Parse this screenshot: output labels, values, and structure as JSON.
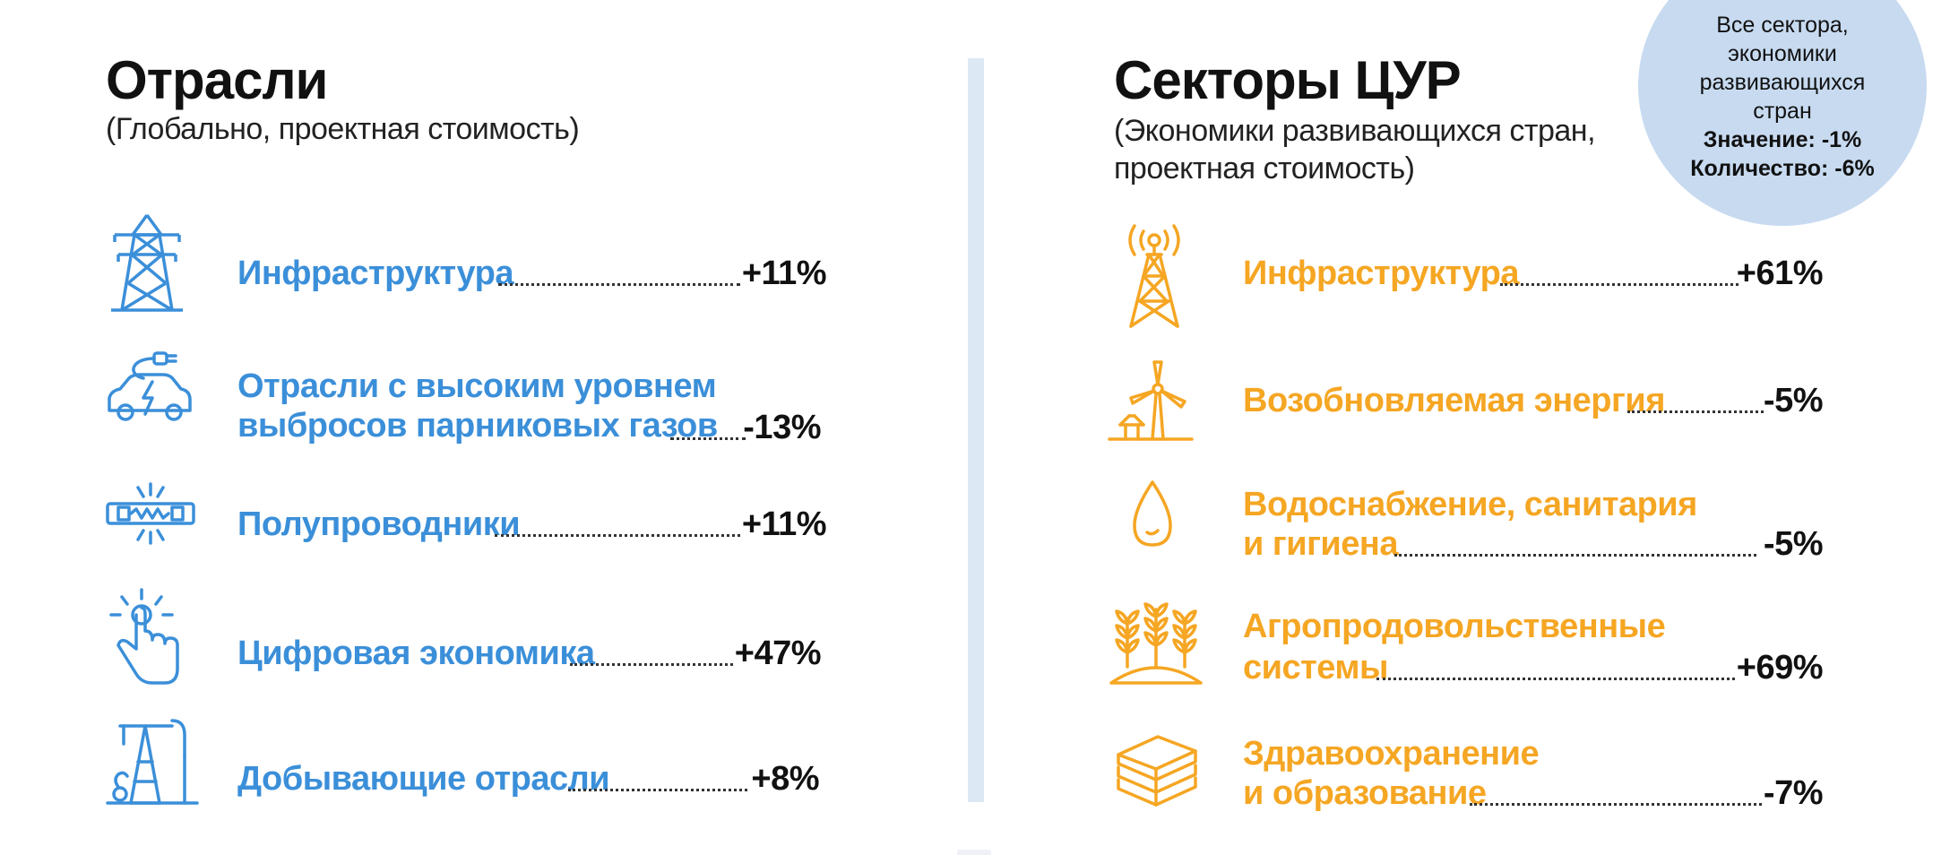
{
  "left": {
    "title": "Отрасли",
    "subtitle": "(Глобально, проектная стоимость)",
    "accent_color": "#3b8fd9",
    "items": [
      {
        "icon": "power-tower-icon",
        "label_line1": "Инфраструктура",
        "label_line2": "",
        "value": "+11%"
      },
      {
        "icon": "electric-car-icon",
        "label_line1": "Отрасли с высоким уровнем",
        "label_line2": "выбросов парниковых газов",
        "value": "-13%"
      },
      {
        "icon": "semiconductor-icon",
        "label_line1": "Полупроводники",
        "label_line2": "",
        "value": "+11%"
      },
      {
        "icon": "touch-finger-icon",
        "label_line1": "Цифровая экономика",
        "label_line2": "",
        "value": "+47%"
      },
      {
        "icon": "oil-pump-icon",
        "label_line1": "Добывающие отрасли",
        "label_line2": "",
        "value": "+8%"
      }
    ]
  },
  "right": {
    "title": "Секторы ЦУР",
    "subtitle_line1": "(Экономики развивающихся стран,",
    "subtitle_line2": "проектная стоимость)",
    "accent_color": "#f5a623",
    "items": [
      {
        "icon": "radio-tower-icon",
        "label_line1": "Инфраструктура",
        "label_line2": "",
        "value": "+61%"
      },
      {
        "icon": "wind-turbine-icon",
        "label_line1": "Возобновляемая энергия",
        "label_line2": "",
        "value": "-5%"
      },
      {
        "icon": "water-drop-icon",
        "label_line1": "Водоснабжение, санитария",
        "label_line2": "и гигиена",
        "value": "-5%"
      },
      {
        "icon": "wheat-icon",
        "label_line1": "Агропродовольственные",
        "label_line2": "системы",
        "value": "+69%"
      },
      {
        "icon": "books-icon",
        "label_line1": "Здравоохранение",
        "label_line2": "и образование",
        "value": "-7%"
      }
    ]
  },
  "bubble": {
    "line1": "Все сектора,",
    "line2": "экономики",
    "line3": "развивающихся",
    "line4": "стран",
    "value_line": "Значение: -1%",
    "count_line": "Количество: -6%",
    "color": "#c7daf0"
  }
}
